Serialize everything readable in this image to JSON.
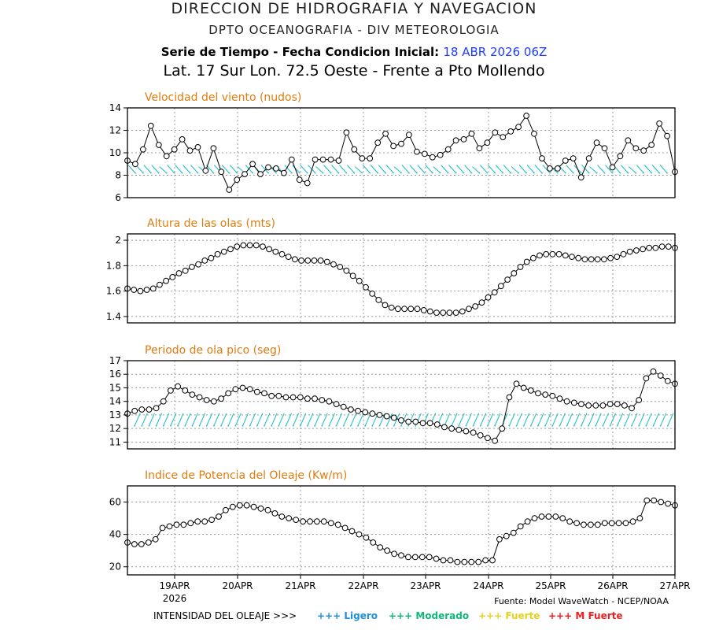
{
  "header": {
    "line1": "DIRECCION DE HIDROGRAFIA Y NAVEGACION",
    "line2": "DPTO OCEANOGRAFIA - DIV METEOROLOGIA",
    "line3_prefix": "Serie de Tiempo - Fecha Condicion Inicial:",
    "line3_date": "18 ABR 2026 06Z",
    "line4": "Lat. 17 Sur  Lon. 72.5 Oeste - Frente a Pto Mollendo"
  },
  "source": "Fuente: Model WaveWatch - NCEP/NOAA",
  "legend": {
    "label": "INTENSIDAD DEL OLEAJE >>>",
    "items": [
      {
        "text": "+++ Ligero",
        "color": "#1e90e0"
      },
      {
        "text": "+++ Moderado",
        "color": "#10b878"
      },
      {
        "text": "+++ Fuerte",
        "color": "#e8d020"
      },
      {
        "text": "+++ M Fuerte",
        "color": "#f02020"
      }
    ]
  },
  "colors": {
    "title": "#e07c10",
    "arrows": "#20c0c8",
    "line": "#000000",
    "grid": "#9a9a9a"
  },
  "chart_data": [
    {
      "type": "line",
      "title": "Velocidad del viento (nudos)",
      "xlabel": "",
      "ylabel": "",
      "x_tick_labels": [
        "19APR",
        "20APR",
        "21APR",
        "22APR",
        "23APR",
        "24APR",
        "25APR",
        "26APR",
        "27APR"
      ],
      "x_year_label": "2026",
      "x_start": "18APR 06Z",
      "x_step_hours": 3,
      "ylim": [
        6,
        14
      ],
      "yticks": [
        6,
        8,
        10,
        12,
        14
      ],
      "grid": true,
      "direction_arrows": true,
      "series": [
        {
          "values": [
            9.3,
            9.0,
            10.3,
            12.4,
            10.7,
            9.7,
            10.3,
            11.2,
            10.2,
            10.5,
            8.4,
            10.4,
            8.3,
            6.7,
            7.6,
            8.1,
            9.0,
            8.1,
            8.7,
            8.6,
            8.2,
            9.4,
            7.6,
            7.3,
            9.4,
            9.4,
            9.4,
            9.3,
            11.8,
            10.3,
            9.5,
            9.5,
            10.9,
            11.7,
            10.6,
            10.8,
            11.6,
            10.1,
            9.9,
            9.6,
            9.8,
            10.3,
            11.1,
            11.2,
            11.7,
            10.4,
            10.9,
            11.8,
            11.4,
            11.9,
            12.3,
            13.3,
            11.7,
            9.5,
            8.6,
            8.6,
            9.3,
            9.5,
            7.8,
            9.5,
            10.9,
            10.4,
            8.7,
            9.7,
            11.1,
            10.4,
            10.2,
            10.7,
            12.6,
            11.5,
            8.3
          ]
        }
      ]
    },
    {
      "type": "line",
      "title": "Altura de las olas (mts)",
      "xlabel": "",
      "ylabel": "",
      "ylim": [
        1.35,
        2.05
      ],
      "yticks": [
        1.4,
        1.6,
        1.8,
        2.0
      ],
      "grid": true,
      "series": [
        {
          "values": [
            1.62,
            1.61,
            1.6,
            1.61,
            1.62,
            1.65,
            1.68,
            1.71,
            1.74,
            1.76,
            1.79,
            1.81,
            1.84,
            1.86,
            1.89,
            1.91,
            1.93,
            1.95,
            1.96,
            1.96,
            1.96,
            1.95,
            1.93,
            1.91,
            1.89,
            1.87,
            1.85,
            1.84,
            1.84,
            1.84,
            1.84,
            1.83,
            1.81,
            1.79,
            1.76,
            1.72,
            1.68,
            1.63,
            1.58,
            1.53,
            1.49,
            1.47,
            1.46,
            1.46,
            1.46,
            1.46,
            1.45,
            1.44,
            1.43,
            1.43,
            1.43,
            1.43,
            1.44,
            1.46,
            1.48,
            1.51,
            1.55,
            1.59,
            1.64,
            1.69,
            1.74,
            1.79,
            1.83,
            1.86,
            1.88,
            1.89,
            1.89,
            1.89,
            1.88,
            1.87,
            1.86,
            1.85,
            1.85,
            1.85,
            1.85,
            1.86,
            1.87,
            1.89,
            1.91,
            1.92,
            1.93,
            1.94,
            1.94,
            1.95,
            1.95,
            1.94
          ]
        }
      ]
    },
    {
      "type": "line",
      "title": "Periodo de ola pico (seg)",
      "xlabel": "",
      "ylabel": "",
      "ylim": [
        10.5,
        17
      ],
      "yticks": [
        11,
        12,
        13,
        14,
        15,
        16,
        17
      ],
      "grid": true,
      "direction_arrows": true,
      "series": [
        {
          "values": [
            13.1,
            13.3,
            13.4,
            13.4,
            13.5,
            14.0,
            14.8,
            15.1,
            14.8,
            14.5,
            14.3,
            14.1,
            14.0,
            14.2,
            14.6,
            14.9,
            15.0,
            14.9,
            14.7,
            14.6,
            14.4,
            14.4,
            14.3,
            14.3,
            14.3,
            14.2,
            14.2,
            14.1,
            14.0,
            13.8,
            13.6,
            13.4,
            13.3,
            13.2,
            13.1,
            13.0,
            12.9,
            12.8,
            12.6,
            12.5,
            12.5,
            12.4,
            12.4,
            12.3,
            12.1,
            12.0,
            11.9,
            11.8,
            11.7,
            11.5,
            11.3,
            11.1,
            12.0,
            14.3,
            15.3,
            15.0,
            14.8,
            14.6,
            14.5,
            14.4,
            14.2,
            14.0,
            13.9,
            13.8,
            13.7,
            13.7,
            13.7,
            13.8,
            13.8,
            13.7,
            13.5,
            14.1,
            15.7,
            16.2,
            15.9,
            15.5,
            15.3
          ]
        }
      ]
    },
    {
      "type": "line",
      "title": "Indice de Potencia del Oleaje (Kw/m)",
      "xlabel": "",
      "ylabel": "",
      "ylim": [
        15,
        70
      ],
      "yticks": [
        20,
        40,
        60
      ],
      "grid": true,
      "series": [
        {
          "values": [
            35,
            34,
            34,
            35,
            37,
            44,
            45,
            46,
            46,
            47,
            48,
            48,
            49,
            51,
            55,
            57,
            58,
            58,
            57,
            56,
            55,
            53,
            51,
            50,
            49,
            48,
            48,
            48,
            48,
            47,
            46,
            44,
            42,
            40,
            38,
            35,
            32,
            30,
            28,
            27,
            26,
            26,
            26,
            26,
            25,
            24,
            24,
            23,
            23,
            23,
            23,
            24,
            24,
            37,
            39,
            41,
            45,
            48,
            50,
            51,
            51,
            51,
            50,
            48,
            47,
            46,
            46,
            46,
            47,
            47,
            47,
            47,
            48,
            50,
            61,
            61,
            60,
            59,
            58
          ]
        }
      ]
    }
  ]
}
